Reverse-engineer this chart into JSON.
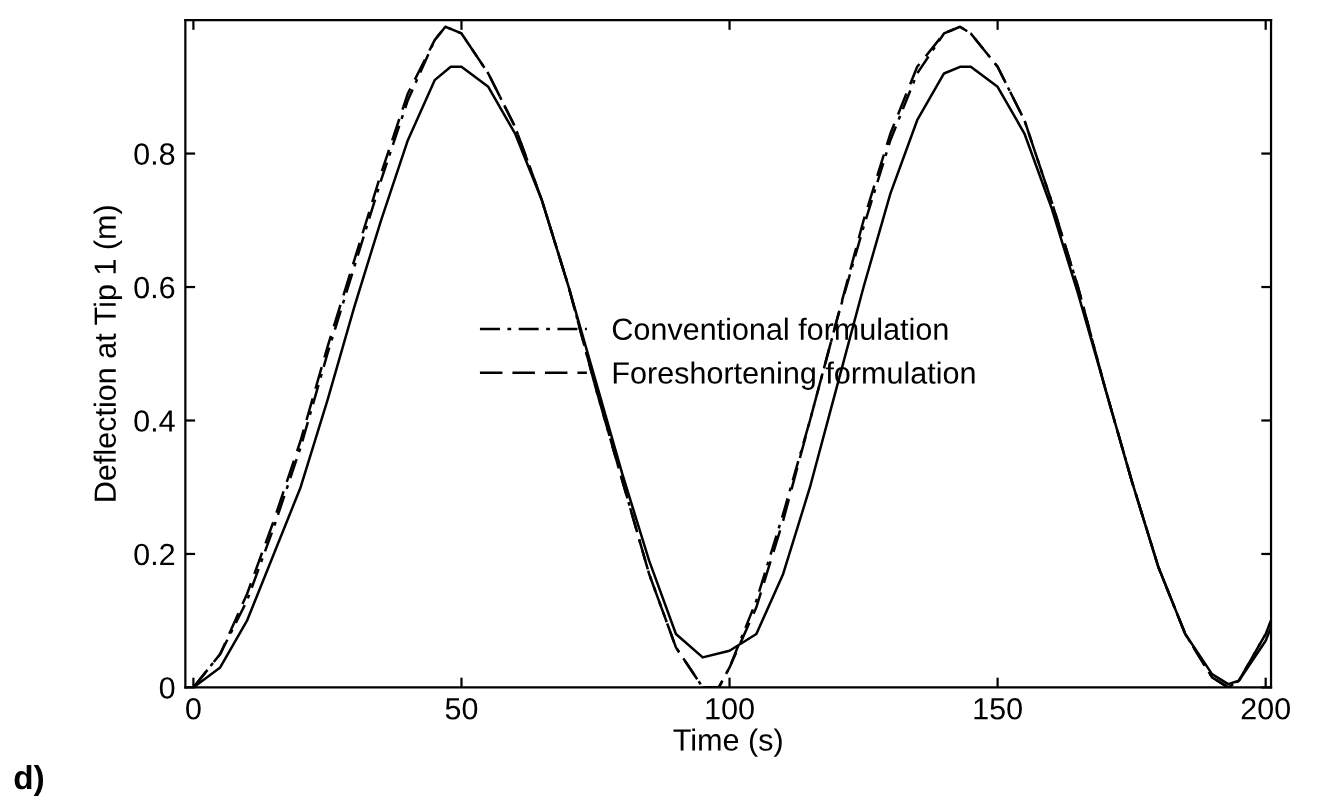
{
  "chart_data": {
    "type": "line",
    "xlabel": "Time (s)",
    "ylabel": "Deflection at Tip 1 (m)",
    "annotations": [
      "d)"
    ],
    "xlim": [
      -1.5,
      201
    ],
    "ylim": [
      0,
      1.0
    ],
    "xticks": [
      0,
      50,
      100,
      150,
      200
    ],
    "yticks": [
      0,
      0.2,
      0.4,
      0.6,
      0.8
    ],
    "grid": false,
    "legend": "center",
    "marker": "none",
    "series": [
      {
        "color": "#000000",
        "line_style": "solid",
        "x": [
          0,
          5,
          10,
          15,
          20,
          25,
          30,
          35,
          40,
          45,
          48,
          50,
          55,
          60,
          65,
          70,
          75,
          80,
          85,
          90,
          95,
          100,
          105,
          110,
          115,
          120,
          125,
          130,
          135,
          140,
          143,
          145,
          150,
          155,
          160,
          165,
          170,
          175,
          180,
          185,
          190,
          193,
          195,
          200,
          201
        ],
        "values": [
          0,
          0.03,
          0.1,
          0.2,
          0.3,
          0.43,
          0.57,
          0.7,
          0.82,
          0.91,
          0.93,
          0.93,
          0.9,
          0.83,
          0.73,
          0.6,
          0.46,
          0.32,
          0.19,
          0.08,
          0.045,
          0.055,
          0.08,
          0.17,
          0.3,
          0.45,
          0.6,
          0.74,
          0.85,
          0.92,
          0.93,
          0.93,
          0.9,
          0.83,
          0.72,
          0.59,
          0.45,
          0.31,
          0.18,
          0.08,
          0.02,
          0.005,
          0.01,
          0.07,
          0.09
        ]
      },
      {
        "name": "Conventional formulation",
        "color": "#000000",
        "line_style": "dashdot",
        "x": [
          0,
          5,
          10,
          15,
          20,
          25,
          30,
          35,
          40,
          45,
          47,
          50,
          55,
          60,
          65,
          70,
          75,
          80,
          85,
          90,
          95,
          98,
          100,
          105,
          110,
          115,
          120,
          125,
          130,
          135,
          140,
          143,
          145,
          150,
          155,
          160,
          165,
          170,
          175,
          180,
          185,
          190,
          193,
          195,
          200,
          201
        ],
        "values": [
          0,
          0.05,
          0.13,
          0.24,
          0.36,
          0.5,
          0.63,
          0.76,
          0.88,
          0.97,
          0.99,
          0.98,
          0.92,
          0.84,
          0.73,
          0.6,
          0.45,
          0.31,
          0.17,
          0.06,
          0.0,
          0.0,
          0.03,
          0.13,
          0.26,
          0.4,
          0.55,
          0.69,
          0.82,
          0.92,
          0.98,
          0.99,
          0.98,
          0.93,
          0.85,
          0.73,
          0.6,
          0.45,
          0.31,
          0.18,
          0.08,
          0.015,
          0.0,
          0.01,
          0.08,
          0.1
        ]
      },
      {
        "name": "Foreshortening formulation",
        "color": "#000000",
        "line_style": "dashed",
        "x": [
          0,
          5,
          10,
          15,
          20,
          25,
          30,
          35,
          40,
          45,
          47,
          50,
          55,
          60,
          65,
          70,
          75,
          80,
          85,
          90,
          95,
          98,
          100,
          105,
          110,
          115,
          120,
          125,
          130,
          135,
          140,
          143,
          145,
          150,
          155,
          160,
          165,
          170,
          175,
          180,
          185,
          190,
          193,
          195,
          200,
          201
        ],
        "values": [
          0,
          0.05,
          0.14,
          0.25,
          0.37,
          0.51,
          0.64,
          0.77,
          0.89,
          0.97,
          0.99,
          0.98,
          0.92,
          0.84,
          0.73,
          0.6,
          0.45,
          0.31,
          0.17,
          0.06,
          0.0,
          0.0,
          0.03,
          0.12,
          0.25,
          0.4,
          0.55,
          0.7,
          0.83,
          0.93,
          0.98,
          0.99,
          0.98,
          0.93,
          0.85,
          0.73,
          0.6,
          0.45,
          0.31,
          0.18,
          0.08,
          0.015,
          0.0,
          0.01,
          0.08,
          0.1
        ]
      }
    ]
  }
}
